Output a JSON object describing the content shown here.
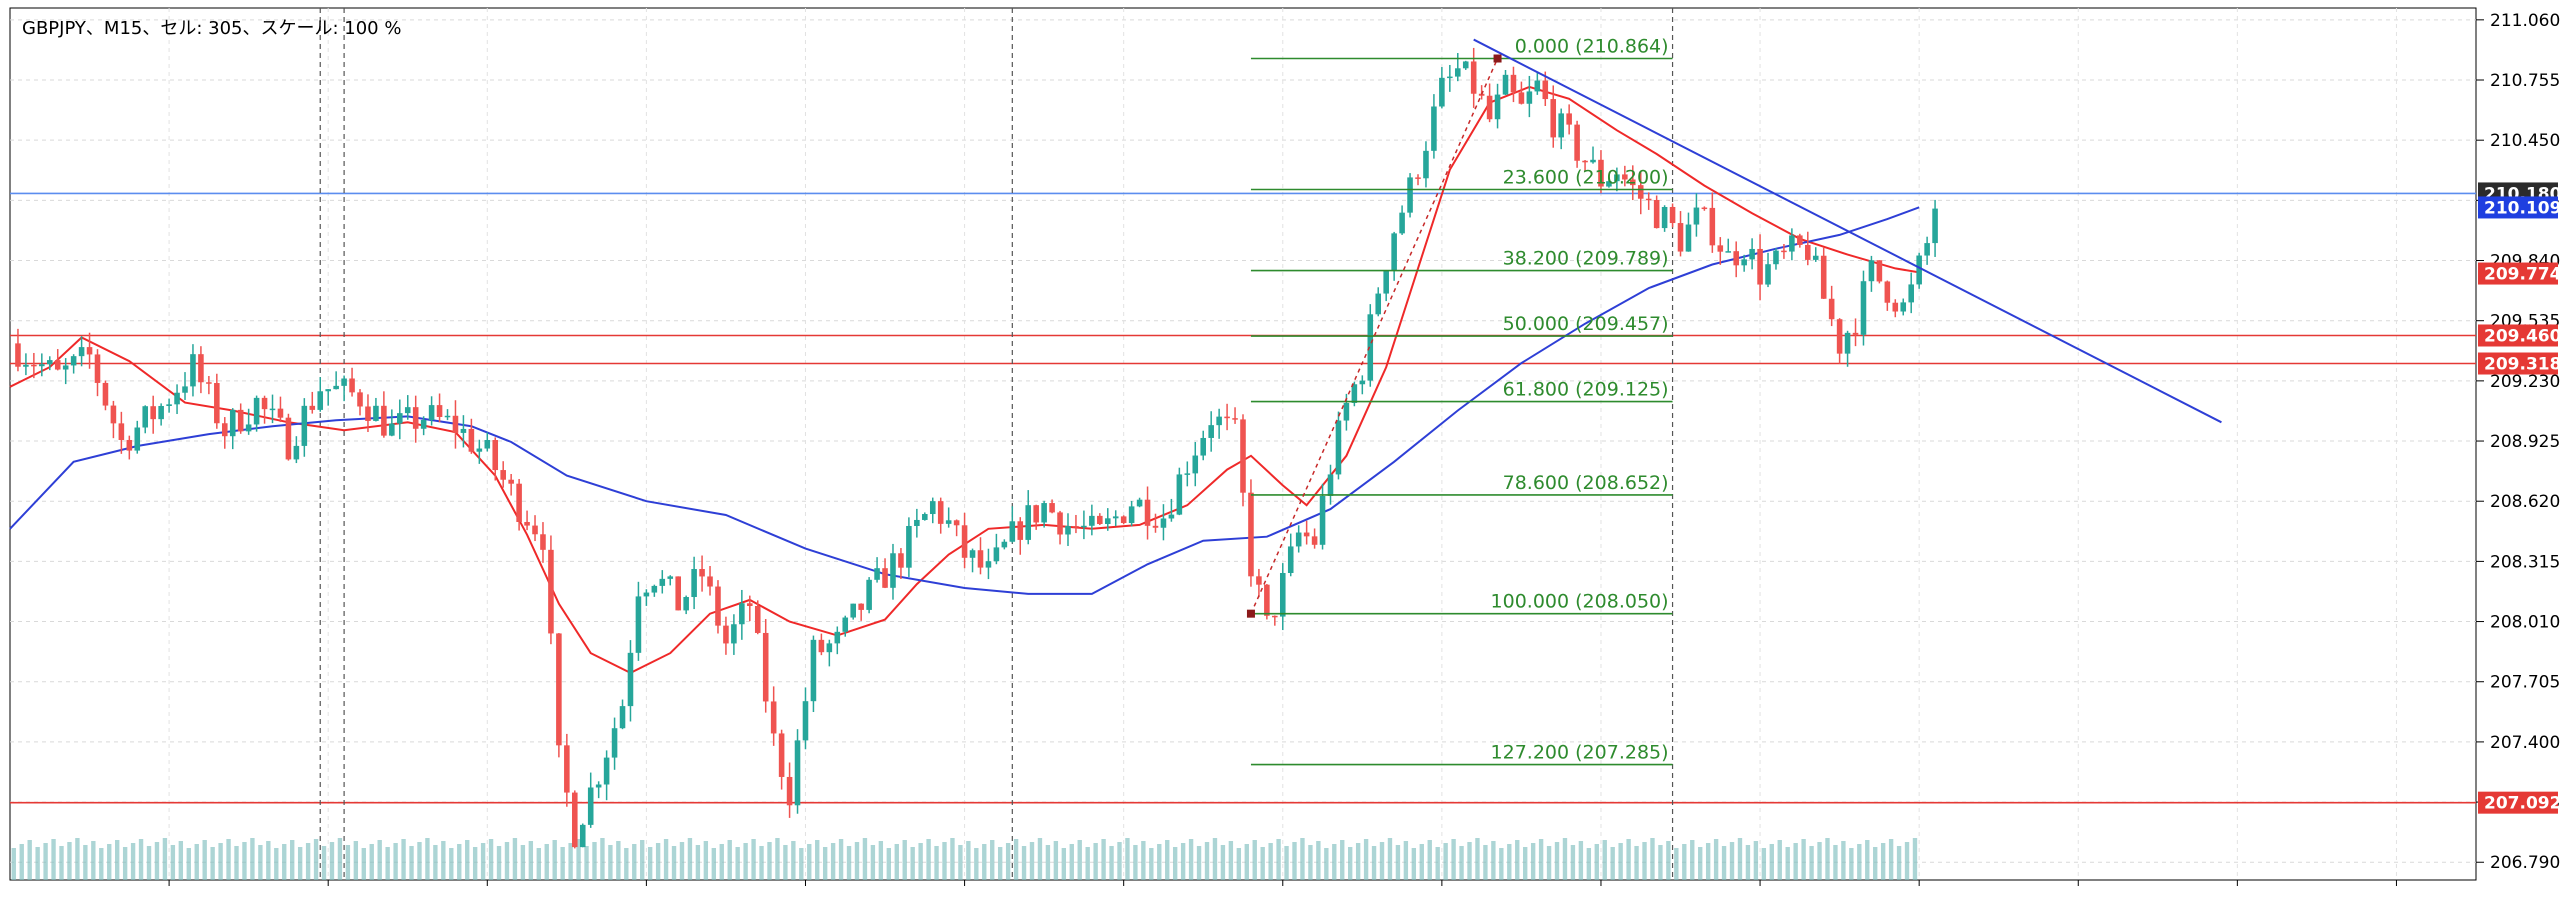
{
  "window": {
    "header": "GBPJPY、M15、セル: 305、スケール: 100 %"
  },
  "chart_data": {
    "type": "candlestick",
    "symbol": "GBPJPY",
    "timeframe": "M15",
    "y_ticks": [
      211.06,
      210.755,
      210.45,
      210.145,
      209.84,
      209.535,
      209.23,
      208.925,
      208.62,
      208.315,
      208.01,
      207.705,
      207.4,
      207.095,
      206.79
    ],
    "y_tick_labels": [
      "211.060",
      "210.755",
      "210.450",
      "210.145",
      "209.840",
      "209.535",
      "209.230",
      "208.925",
      "208.620",
      "208.315",
      "208.010",
      "207.705",
      "207.400",
      "207.095",
      "206.790"
    ],
    "ylim": [
      206.7,
      211.12
    ],
    "x_range": [
      0,
      310
    ],
    "bar_count": 305,
    "candle_colors": {
      "up": "#26a69a",
      "down": "#ef5350"
    },
    "moving_averages": [
      {
        "color": "#ef2929",
        "points": [
          [
            0,
            209.2
          ],
          [
            5,
            209.3
          ],
          [
            9,
            209.45
          ],
          [
            15,
            209.33
          ],
          [
            22,
            209.12
          ],
          [
            28,
            209.08
          ],
          [
            35,
            209.02
          ],
          [
            42,
            208.98
          ],
          [
            50,
            209.02
          ],
          [
            56,
            208.97
          ],
          [
            61,
            208.75
          ],
          [
            65,
            208.45
          ],
          [
            69,
            208.1
          ],
          [
            73,
            207.85
          ],
          [
            78,
            207.75
          ],
          [
            83,
            207.85
          ],
          [
            88,
            208.05
          ],
          [
            93,
            208.12
          ],
          [
            98,
            208.01
          ],
          [
            104,
            207.94
          ],
          [
            110,
            208.02
          ],
          [
            114,
            208.2
          ],
          [
            118,
            208.35
          ],
          [
            123,
            208.48
          ],
          [
            130,
            208.5
          ],
          [
            136,
            208.48
          ],
          [
            142,
            208.5
          ],
          [
            148,
            208.6
          ],
          [
            153,
            208.78
          ],
          [
            156,
            208.85
          ],
          [
            160,
            208.7
          ],
          [
            163,
            208.6
          ],
          [
            168,
            208.85
          ],
          [
            173,
            209.3
          ],
          [
            177,
            209.8
          ],
          [
            181,
            210.3
          ],
          [
            186,
            210.64
          ],
          [
            191,
            210.72
          ],
          [
            196,
            210.66
          ],
          [
            202,
            210.5
          ],
          [
            207,
            210.38
          ],
          [
            213,
            210.22
          ],
          [
            219,
            210.08
          ],
          [
            225,
            209.95
          ],
          [
            231,
            209.87
          ],
          [
            237,
            209.8
          ],
          [
            240,
            209.78
          ]
        ]
      },
      {
        "color": "#2e3fd6",
        "points": [
          [
            0,
            208.48
          ],
          [
            8,
            208.82
          ],
          [
            16,
            208.9
          ],
          [
            25,
            208.96
          ],
          [
            33,
            209.0
          ],
          [
            41,
            209.03
          ],
          [
            50,
            209.05
          ],
          [
            58,
            209.0
          ],
          [
            63,
            208.92
          ],
          [
            70,
            208.75
          ],
          [
            80,
            208.62
          ],
          [
            90,
            208.55
          ],
          [
            100,
            208.38
          ],
          [
            110,
            208.25
          ],
          [
            120,
            208.18
          ],
          [
            128,
            208.15
          ],
          [
            136,
            208.15
          ],
          [
            143,
            208.3
          ],
          [
            150,
            208.42
          ],
          [
            158,
            208.44
          ],
          [
            166,
            208.58
          ],
          [
            174,
            208.82
          ],
          [
            182,
            209.08
          ],
          [
            190,
            209.32
          ],
          [
            198,
            209.52
          ],
          [
            206,
            209.7
          ],
          [
            214,
            209.82
          ],
          [
            222,
            209.9
          ],
          [
            230,
            209.97
          ],
          [
            236,
            210.05
          ],
          [
            240,
            210.11
          ]
        ]
      }
    ],
    "fibonacci": {
      "color": "#2e8b2e",
      "x_start": 156,
      "x_end": 209,
      "anchor_high": {
        "x": 187,
        "y": 210.864
      },
      "anchor_low": {
        "x": 156,
        "y": 208.05
      },
      "levels": [
        {
          "label": "0.000 (210.864)",
          "price": 210.864
        },
        {
          "label": "23.600 (210.200)",
          "price": 210.2
        },
        {
          "label": "38.200 (209.789)",
          "price": 209.789
        },
        {
          "label": "50.000 (209.457)",
          "price": 209.457
        },
        {
          "label": "61.800 (209.125)",
          "price": 209.125
        },
        {
          "label": "78.600 (208.652)",
          "price": 208.652
        },
        {
          "label": "100.000 (208.050)",
          "price": 208.05
        },
        {
          "label": "127.200 (207.285)",
          "price": 207.285
        }
      ]
    },
    "trendline": {
      "color": "#2e3fd6",
      "from": {
        "x": 184,
        "y": 210.96
      },
      "to": {
        "x": 278,
        "y": 209.02
      }
    },
    "horizontal_lines": [
      {
        "price": 210.18,
        "color": "#5b8def",
        "label": "210.180",
        "label_bg": "#2b2b2b"
      },
      {
        "price": 209.46,
        "color": "#e53935",
        "label": "209.460",
        "label_bg": "#e53935"
      },
      {
        "price": 209.318,
        "color": "#e53935",
        "label": "209.318",
        "label_bg": "#e53935"
      },
      {
        "price": 207.092,
        "color": "#e53935",
        "label": "207.092",
        "label_bg": "#e53935"
      }
    ],
    "price_tags": [
      {
        "price": 210.109,
        "label": "210.109",
        "bg": "#1f3fe0"
      },
      {
        "price": 209.774,
        "label": "209.774",
        "bg": "#e53935"
      }
    ],
    "vertical_separators": [
      39,
      42,
      126,
      209
    ],
    "key_prices": [
      [
        0,
        209.42
      ],
      [
        6,
        209.25
      ],
      [
        10,
        209.35
      ],
      [
        14,
        208.92
      ],
      [
        19,
        209.1
      ],
      [
        23,
        209.3
      ],
      [
        27,
        208.98
      ],
      [
        31,
        209.12
      ],
      [
        35,
        208.92
      ],
      [
        39,
        209.2
      ],
      [
        44,
        209.15
      ],
      [
        48,
        208.98
      ],
      [
        52,
        209.05
      ],
      [
        56,
        209.0
      ],
      [
        60,
        208.85
      ],
      [
        64,
        208.6
      ],
      [
        67,
        208.45
      ],
      [
        69,
        207.3
      ],
      [
        71,
        206.95
      ],
      [
        74,
        207.25
      ],
      [
        77,
        207.6
      ],
      [
        79,
        208.2
      ],
      [
        81,
        208.25
      ],
      [
        84,
        208.1
      ],
      [
        87,
        208.25
      ],
      [
        90,
        207.9
      ],
      [
        93,
        208.1
      ],
      [
        96,
        207.4
      ],
      [
        98,
        207.15
      ],
      [
        101,
        207.85
      ],
      [
        104,
        207.9
      ],
      [
        108,
        208.15
      ],
      [
        112,
        208.35
      ],
      [
        116,
        208.6
      ],
      [
        118,
        208.5
      ],
      [
        120,
        208.35
      ],
      [
        123,
        208.25
      ],
      [
        127,
        208.5
      ],
      [
        130,
        208.6
      ],
      [
        133,
        208.5
      ],
      [
        137,
        208.45
      ],
      [
        141,
        208.62
      ],
      [
        145,
        208.55
      ],
      [
        148,
        208.82
      ],
      [
        151,
        209.05
      ],
      [
        154,
        208.95
      ],
      [
        156,
        208.3
      ],
      [
        158,
        207.98
      ],
      [
        160,
        208.2
      ],
      [
        162,
        208.45
      ],
      [
        164,
        208.42
      ],
      [
        166,
        208.8
      ],
      [
        168,
        209.1
      ],
      [
        170,
        209.3
      ],
      [
        172,
        209.7
      ],
      [
        174,
        210.0
      ],
      [
        176,
        210.2
      ],
      [
        178,
        210.45
      ],
      [
        180,
        210.7
      ],
      [
        182,
        210.8
      ],
      [
        184,
        210.72
      ],
      [
        186,
        210.55
      ],
      [
        188,
        210.7
      ],
      [
        190,
        210.6
      ],
      [
        192,
        210.72
      ],
      [
        194,
        210.55
      ],
      [
        196,
        210.45
      ],
      [
        198,
        210.35
      ],
      [
        200,
        210.25
      ],
      [
        202,
        210.3
      ],
      [
        204,
        210.2
      ],
      [
        206,
        210.12
      ],
      [
        208,
        210.05
      ],
      [
        210,
        209.95
      ],
      [
        212,
        210.05
      ],
      [
        214,
        210.0
      ],
      [
        216,
        209.85
      ],
      [
        218,
        209.92
      ],
      [
        220,
        209.78
      ],
      [
        222,
        209.82
      ],
      [
        224,
        209.88
      ],
      [
        226,
        209.9
      ],
      [
        228,
        209.65
      ],
      [
        230,
        209.42
      ],
      [
        232,
        209.55
      ],
      [
        234,
        209.78
      ],
      [
        236,
        209.7
      ],
      [
        238,
        209.6
      ],
      [
        239,
        209.68
      ],
      [
        240,
        209.8
      ],
      [
        241,
        209.92
      ],
      [
        242,
        210.12
      ]
    ],
    "volume": {
      "color": "#7fbfbf",
      "bar_count": 240
    }
  }
}
